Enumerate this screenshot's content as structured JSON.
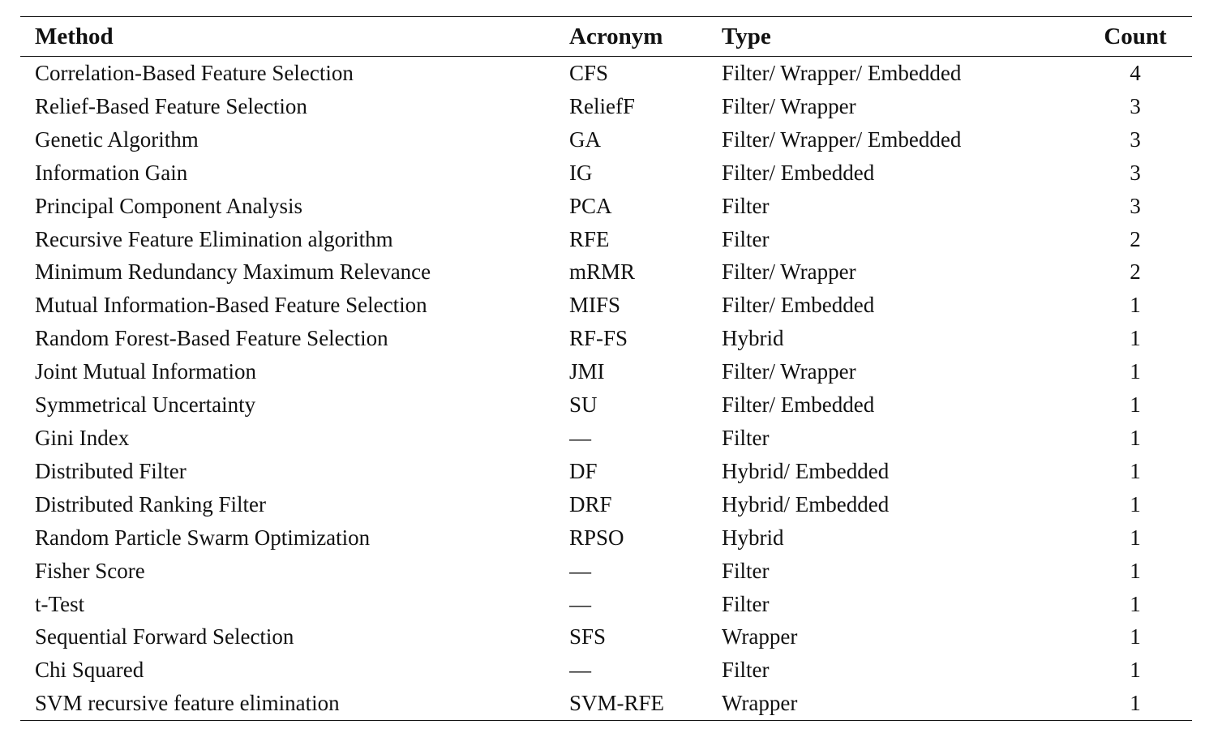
{
  "table": {
    "headers": {
      "method": "Method",
      "acronym": "Acronym",
      "type": "Type",
      "count": "Count"
    },
    "rows": [
      {
        "method": "Correlation-Based Feature Selection",
        "acronym": "CFS",
        "type": "Filter/ Wrapper/ Embedded",
        "count": "4"
      },
      {
        "method": "Relief-Based Feature Selection",
        "acronym": "ReliefF",
        "type": "Filter/ Wrapper",
        "count": "3"
      },
      {
        "method": "Genetic Algorithm",
        "acronym": "GA",
        "type": "Filter/ Wrapper/ Embedded",
        "count": "3"
      },
      {
        "method": "Information Gain",
        "acronym": "IG",
        "type": "Filter/ Embedded",
        "count": "3"
      },
      {
        "method": "Principal Component Analysis",
        "acronym": "PCA",
        "type": "Filter",
        "count": "3"
      },
      {
        "method": "Recursive Feature Elimination algorithm",
        "acronym": "RFE",
        "type": "Filter",
        "count": "2"
      },
      {
        "method": "Minimum Redundancy Maximum Relevance",
        "acronym": "mRMR",
        "type": "Filter/ Wrapper",
        "count": "2"
      },
      {
        "method": "Mutual Information-Based Feature Selection",
        "acronym": "MIFS",
        "type": "Filter/ Embedded",
        "count": "1"
      },
      {
        "method": "Random Forest-Based Feature Selection",
        "acronym": "RF-FS",
        "type": "Hybrid",
        "count": "1"
      },
      {
        "method": "Joint Mutual Information",
        "acronym": "JMI",
        "type": "Filter/ Wrapper",
        "count": "1"
      },
      {
        "method": "Symmetrical Uncertainty",
        "acronym": "SU",
        "type": "Filter/ Embedded",
        "count": "1"
      },
      {
        "method": "Gini Index",
        "acronym": "—",
        "type": "Filter",
        "count": "1"
      },
      {
        "method": "Distributed Filter",
        "acronym": "DF",
        "type": "Hybrid/ Embedded",
        "count": "1"
      },
      {
        "method": "Distributed Ranking Filter",
        "acronym": "DRF",
        "type": "Hybrid/ Embedded",
        "count": "1"
      },
      {
        "method": "Random Particle Swarm Optimization",
        "acronym": "RPSO",
        "type": "Hybrid",
        "count": "1"
      },
      {
        "method": "Fisher Score",
        "acronym": "—",
        "type": "Filter",
        "count": "1"
      },
      {
        "method": "t-Test",
        "acronym": "—",
        "type": "Filter",
        "count": "1"
      },
      {
        "method": "Sequential Forward Selection",
        "acronym": "SFS",
        "type": "Wrapper",
        "count": "1"
      },
      {
        "method": "Chi Squared",
        "acronym": "—",
        "type": "Filter",
        "count": "1"
      },
      {
        "method": "SVM recursive feature elimination",
        "acronym": "SVM-RFE",
        "type": "Wrapper",
        "count": "1"
      }
    ]
  }
}
